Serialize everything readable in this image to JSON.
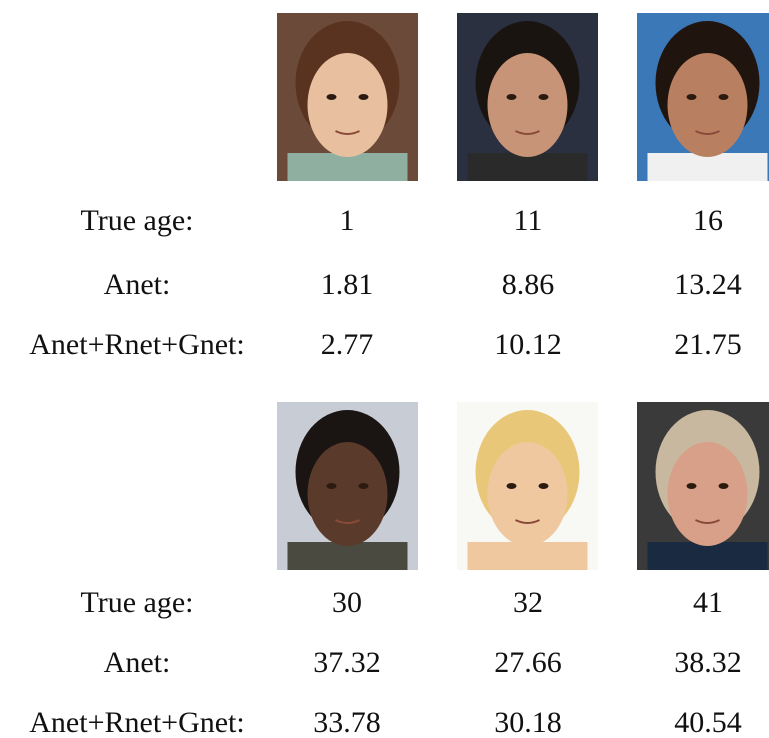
{
  "groups": [
    {
      "rows": [
        {
          "label": "True age:",
          "values": [
            1,
            11,
            16
          ]
        },
        {
          "label": "Anet:",
          "values": [
            1.81,
            8.86,
            13.24
          ]
        },
        {
          "label": "Anet+Rnet+Gnet:",
          "values": [
            2.77,
            10.12,
            21.75
          ]
        }
      ]
    },
    {
      "rows": [
        {
          "label": "True age:",
          "values": [
            30,
            32,
            41
          ]
        },
        {
          "label": "Anet:",
          "values": [
            37.32,
            27.66,
            38.32
          ]
        },
        {
          "label": "Anet+Rnet+Gnet:",
          "values": [
            33.78,
            30.18,
            40.54
          ]
        }
      ]
    }
  ]
}
